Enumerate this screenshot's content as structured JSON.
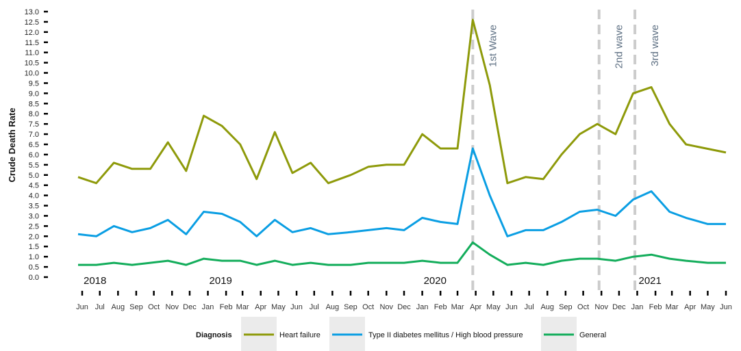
{
  "chart_data": {
    "type": "line",
    "ylabel": "Crude Death Rate",
    "ylim": [
      0,
      13
    ],
    "y_ticks": [
      "0.0",
      "0.5",
      "1.0",
      "1.5",
      "2.0",
      "2.5",
      "3.0",
      "3.5",
      "4.0",
      "4.5",
      "5.0",
      "5.5",
      "6.0",
      "6.5",
      "7.0",
      "7.5",
      "8.0",
      "8.5",
      "9.0",
      "9.5",
      "10.0",
      "10.5",
      "11.0",
      "11.5",
      "12.0",
      "12.5",
      "13.0"
    ],
    "x": [
      "2018-06",
      "2018-07",
      "2018-08",
      "2018-09",
      "2018-10",
      "2018-11",
      "2018-12",
      "2019-01",
      "2019-02",
      "2019-03",
      "2019-04",
      "2019-05",
      "2019-06",
      "2019-07",
      "2019-08",
      "2019-09",
      "2019-10",
      "2019-11",
      "2019-12",
      "2020-01",
      "2020-02",
      "2020-03",
      "2020-04",
      "2020-05",
      "2020-06",
      "2020-07",
      "2020-08",
      "2020-09",
      "2020-10",
      "2020-11",
      "2020-12",
      "2021-01",
      "2021-02",
      "2021-03",
      "2021-04",
      "2021-05",
      "2021-06"
    ],
    "x_tick_labels": [
      "Jun",
      "Jul",
      "Aug",
      "Sep",
      "Oct",
      "Nov",
      "Dec",
      "Jan",
      "Feb",
      "Mar",
      "Apr",
      "May",
      "Jun",
      "Jul",
      "Aug",
      "Sep",
      "Oct",
      "Nov",
      "Dec",
      "Jan",
      "Feb",
      "Mar",
      "Apr",
      "May",
      "Jun",
      "Jul",
      "Aug",
      "Sep",
      "Oct",
      "Nov",
      "Dec",
      "Jan",
      "Feb",
      "Mar",
      "Apr",
      "May",
      "Jun"
    ],
    "year_labels": [
      {
        "text": "2018",
        "date": "2018-06"
      },
      {
        "text": "2019",
        "date": "2019-01"
      },
      {
        "text": "2020",
        "date": "2020-01"
      },
      {
        "text": "2021",
        "date": "2021-01"
      }
    ],
    "series": [
      {
        "name": "Heart failure",
        "color": "#8e9a0a",
        "points": [
          [
            "2018-05-25",
            4.9
          ],
          [
            "2018-06-25",
            4.6
          ],
          [
            "2018-07-25",
            5.6
          ],
          [
            "2018-08-25",
            5.3
          ],
          [
            "2018-09-25",
            5.3
          ],
          [
            "2018-10-25",
            6.6
          ],
          [
            "2018-11-25",
            5.2
          ],
          [
            "2018-12-25",
            7.9
          ],
          [
            "2019-01-25",
            7.4
          ],
          [
            "2019-02-25",
            6.5
          ],
          [
            "2019-03-25",
            4.8
          ],
          [
            "2019-04-25",
            7.1
          ],
          [
            "2019-05-25",
            5.1
          ],
          [
            "2019-06-25",
            5.6
          ],
          [
            "2019-07-25",
            4.6
          ],
          [
            "2019-09-01",
            5.0
          ],
          [
            "2019-10-01",
            5.4
          ],
          [
            "2019-11-01",
            5.5
          ],
          [
            "2019-12-01",
            5.5
          ],
          [
            "2020-01-01",
            7.0
          ],
          [
            "2020-02-01",
            6.3
          ],
          [
            "2020-03-01",
            6.3
          ],
          [
            "2020-03-27",
            12.6
          ],
          [
            "2020-04-25",
            9.4
          ],
          [
            "2020-05-25",
            4.6
          ],
          [
            "2020-06-25",
            4.9
          ],
          [
            "2020-07-25",
            4.8
          ],
          [
            "2020-08-25",
            6.0
          ],
          [
            "2020-09-25",
            7.0
          ],
          [
            "2020-10-25",
            7.5
          ],
          [
            "2020-11-25",
            7.0
          ],
          [
            "2020-12-25",
            9.0
          ],
          [
            "2021-01-25",
            9.3
          ],
          [
            "2021-02-25",
            7.5
          ],
          [
            "2021-03-25",
            6.5
          ],
          [
            "2021-06-01",
            6.1
          ]
        ]
      },
      {
        "name": "Type II diabetes mellitus / High blood pressure",
        "color": "#0a9ee3",
        "points": [
          [
            "2018-05-25",
            2.1
          ],
          [
            "2018-06-25",
            2.0
          ],
          [
            "2018-07-25",
            2.5
          ],
          [
            "2018-08-25",
            2.2
          ],
          [
            "2018-09-25",
            2.4
          ],
          [
            "2018-10-25",
            2.8
          ],
          [
            "2018-11-25",
            2.1
          ],
          [
            "2018-12-25",
            3.2
          ],
          [
            "2019-01-25",
            3.1
          ],
          [
            "2019-02-25",
            2.7
          ],
          [
            "2019-03-25",
            2.0
          ],
          [
            "2019-04-25",
            2.8
          ],
          [
            "2019-05-25",
            2.2
          ],
          [
            "2019-06-25",
            2.4
          ],
          [
            "2019-07-25",
            2.1
          ],
          [
            "2019-09-01",
            2.2
          ],
          [
            "2019-10-01",
            2.3
          ],
          [
            "2019-11-01",
            2.4
          ],
          [
            "2019-12-01",
            2.3
          ],
          [
            "2020-01-01",
            2.9
          ],
          [
            "2020-02-01",
            2.7
          ],
          [
            "2020-03-01",
            2.6
          ],
          [
            "2020-03-27",
            6.3
          ],
          [
            "2020-04-25",
            4.0
          ],
          [
            "2020-05-25",
            2.0
          ],
          [
            "2020-06-25",
            2.3
          ],
          [
            "2020-07-25",
            2.3
          ],
          [
            "2020-08-25",
            2.7
          ],
          [
            "2020-09-25",
            3.2
          ],
          [
            "2020-10-25",
            3.3
          ],
          [
            "2020-11-25",
            3.0
          ],
          [
            "2020-12-25",
            3.8
          ],
          [
            "2021-01-25",
            4.2
          ],
          [
            "2021-02-25",
            3.2
          ],
          [
            "2021-03-25",
            2.9
          ],
          [
            "2021-05-01",
            2.6
          ],
          [
            "2021-06-01",
            2.6
          ]
        ]
      },
      {
        "name": "General",
        "color": "#13ad5b",
        "points": [
          [
            "2018-05-25",
            0.6
          ],
          [
            "2018-06-25",
            0.6
          ],
          [
            "2018-07-25",
            0.7
          ],
          [
            "2018-08-25",
            0.6
          ],
          [
            "2018-09-25",
            0.7
          ],
          [
            "2018-10-25",
            0.8
          ],
          [
            "2018-11-25",
            0.6
          ],
          [
            "2018-12-25",
            0.9
          ],
          [
            "2019-01-25",
            0.8
          ],
          [
            "2019-02-25",
            0.8
          ],
          [
            "2019-03-25",
            0.6
          ],
          [
            "2019-04-25",
            0.8
          ],
          [
            "2019-05-25",
            0.6
          ],
          [
            "2019-06-25",
            0.7
          ],
          [
            "2019-07-25",
            0.6
          ],
          [
            "2019-09-01",
            0.6
          ],
          [
            "2019-10-01",
            0.7
          ],
          [
            "2019-11-01",
            0.7
          ],
          [
            "2019-12-01",
            0.7
          ],
          [
            "2020-01-01",
            0.8
          ],
          [
            "2020-02-01",
            0.7
          ],
          [
            "2020-03-01",
            0.7
          ],
          [
            "2020-03-27",
            1.7
          ],
          [
            "2020-04-25",
            1.1
          ],
          [
            "2020-05-25",
            0.6
          ],
          [
            "2020-06-25",
            0.7
          ],
          [
            "2020-07-25",
            0.6
          ],
          [
            "2020-08-25",
            0.8
          ],
          [
            "2020-09-25",
            0.9
          ],
          [
            "2020-10-25",
            0.9
          ],
          [
            "2020-11-25",
            0.8
          ],
          [
            "2020-12-25",
            1.0
          ],
          [
            "2021-01-25",
            1.1
          ],
          [
            "2021-02-25",
            0.9
          ],
          [
            "2021-03-25",
            0.8
          ],
          [
            "2021-05-01",
            0.7
          ],
          [
            "2021-06-01",
            0.7
          ]
        ]
      }
    ],
    "annotations": [
      {
        "label": "1st Wave",
        "date": "2020-03-27"
      },
      {
        "label": "2nd wave",
        "date": "2020-10-28"
      },
      {
        "label": "3rd wave",
        "date": "2020-12-28"
      }
    ],
    "grid": false,
    "legend": {
      "title": "Diagnosis",
      "placement": "bottom",
      "items": [
        {
          "label": "Heart failure",
          "color": "#8e9a0a"
        },
        {
          "label": "Type II diabetes mellitus / High blood pressure",
          "color": "#0a9ee3"
        },
        {
          "label": "General",
          "color": "#13ad5b"
        }
      ]
    }
  }
}
